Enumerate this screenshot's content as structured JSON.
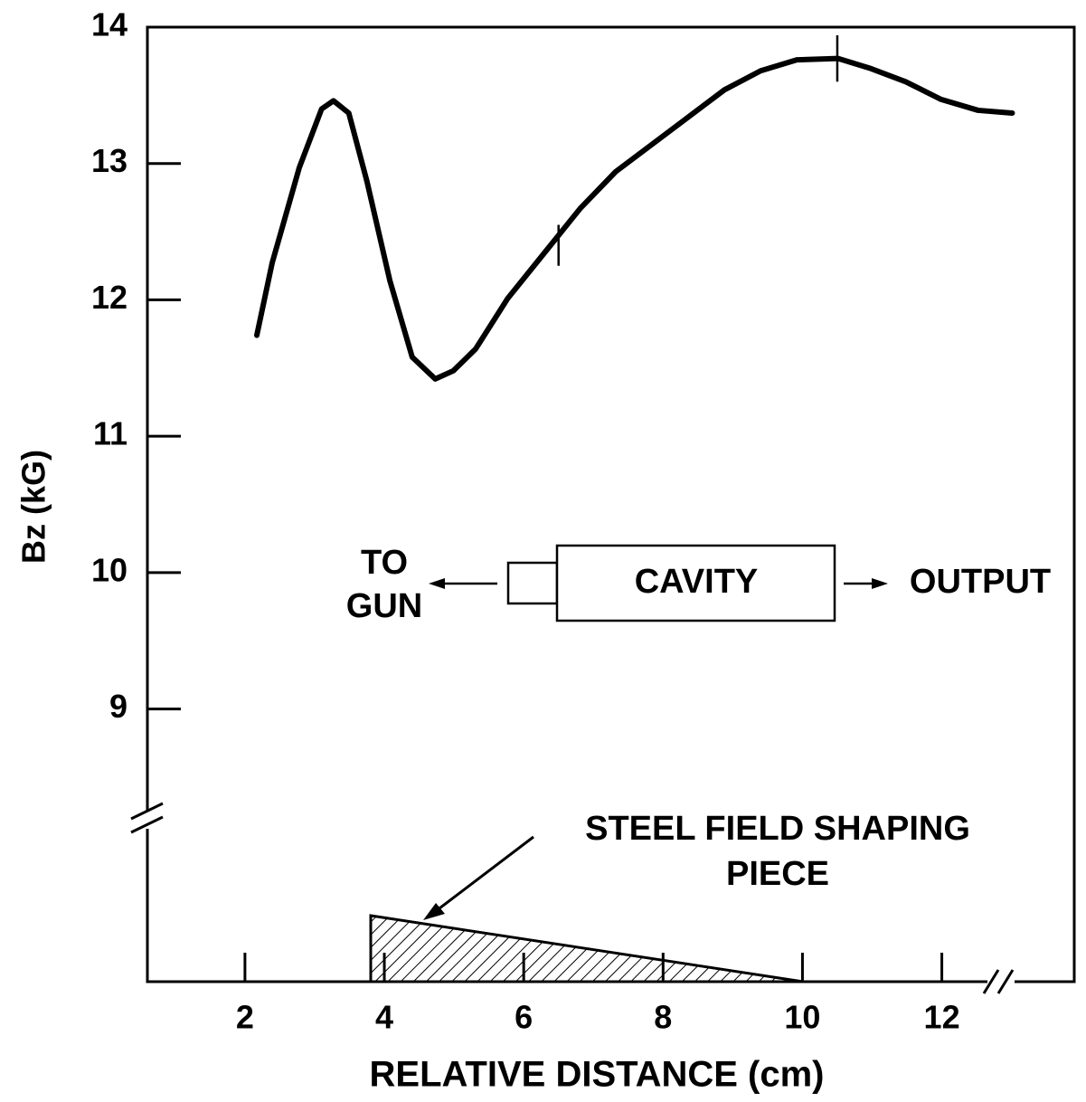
{
  "chart_data": {
    "type": "line",
    "xlabel": "RELATIVE DISTANCE (cm)",
    "ylabel": "Bz (kG)",
    "x": [
      2.17,
      2.39,
      2.78,
      3.1,
      3.27,
      3.49,
      3.75,
      4.08,
      4.4,
      4.73,
      4.99,
      5.31,
      5.77,
      6.29,
      6.81,
      7.32,
      7.84,
      8.36,
      8.88,
      9.4,
      9.92,
      10.51,
      10.96,
      11.48,
      11.99,
      12.52,
      13.01
    ],
    "series": [
      {
        "color": "#000000",
        "values": [
          11.74,
          12.27,
          12.97,
          13.4,
          13.46,
          13.37,
          12.87,
          12.14,
          11.58,
          11.42,
          11.48,
          11.64,
          12.01,
          12.34,
          12.67,
          12.94,
          13.14,
          13.34,
          13.54,
          13.68,
          13.76,
          13.77,
          13.7,
          13.6,
          13.47,
          13.39,
          13.37
        ]
      }
    ],
    "error_bars": [
      {
        "x": 6.5,
        "y": 12.4,
        "err": 0.15
      },
      {
        "x": 10.5,
        "y": 13.77,
        "err": 0.17
      }
    ],
    "xlim": [
      0.6,
      13.9
    ],
    "xticks": [
      2,
      4,
      6,
      8,
      10,
      12
    ],
    "ylim": [
      7,
      14
    ],
    "yticks": [
      9,
      10,
      11,
      12,
      13,
      14
    ],
    "annotations": [
      "TO",
      "GUN",
      "CAVITY",
      "OUTPUT",
      "STEEL FIELD SHAPING",
      "PIECE"
    ]
  }
}
